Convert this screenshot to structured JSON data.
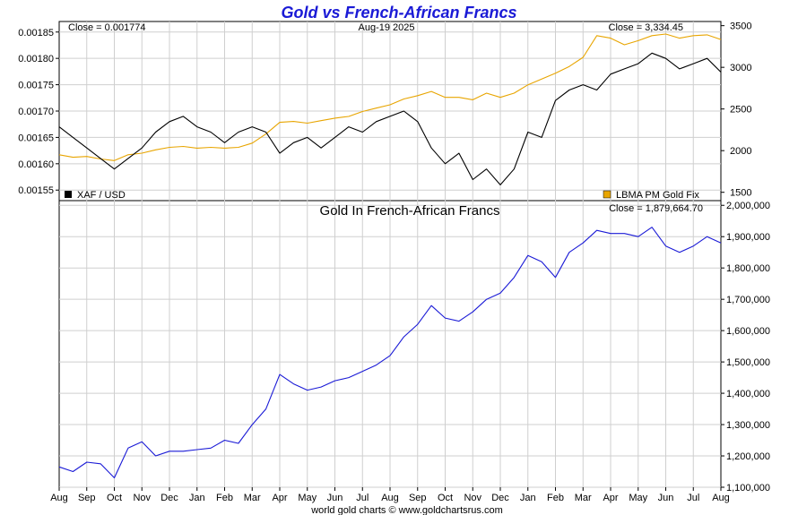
{
  "page": {
    "title": "Gold vs French-African Francs",
    "footer": "world gold charts © www.goldchartsrus.com",
    "date_label": "Aug-19  2025"
  },
  "colors": {
    "title": "#1a1ad6",
    "xaf_usd": "#000000",
    "gold_usd": "#e8a500",
    "gold_xaf": "#1a1ad6"
  },
  "top_panel": {
    "close_left": "Close = 0.001774",
    "close_right": "Close = 3,334.45",
    "legend_left": "XAF / USD",
    "legend_right": "LBMA PM Gold Fix"
  },
  "bottom_panel": {
    "title": "Gold In French-African Francs",
    "close": "Close = 1,879,664.70"
  },
  "chart_data": [
    {
      "type": "line",
      "panel": "top",
      "x_tick_labels": [
        "Aug",
        "Sep",
        "Oct",
        "Nov",
        "Dec",
        "Jan",
        "Feb",
        "Mar",
        "Apr",
        "May",
        "Jun",
        "Jul",
        "Aug",
        "Sep",
        "Oct",
        "Nov",
        "Dec",
        "Jan",
        "Feb",
        "Mar",
        "Apr",
        "May",
        "Jun",
        "Jul",
        "Aug"
      ],
      "y_left": {
        "ticks": [
          "0.00155",
          "0.00160",
          "0.00165",
          "0.00170",
          "0.00175",
          "0.00180",
          "0.00185"
        ],
        "ylim": [
          0.00153,
          0.00187
        ]
      },
      "y_right": {
        "ticks": [
          "1500",
          "2000",
          "2500",
          "3000",
          "3500"
        ],
        "ylim": [
          1400,
          3550
        ]
      },
      "series": [
        {
          "name": "XAF / USD",
          "axis": "left",
          "x": [
            0,
            0.5,
            1,
            1.5,
            2,
            2.5,
            3,
            3.5,
            4,
            4.5,
            5,
            5.5,
            6,
            6.5,
            7,
            7.5,
            8,
            8.5,
            9,
            9.5,
            10,
            10.5,
            11,
            11.5,
            12,
            12.5,
            13,
            13.5,
            14,
            14.5,
            15,
            15.5,
            16,
            16.5,
            17,
            17.5,
            18,
            18.5,
            19,
            19.5,
            20,
            20.5,
            21,
            21.5,
            22,
            22.5,
            23,
            23.5,
            24
          ],
          "values": [
            0.00167,
            0.00165,
            0.00163,
            0.00161,
            0.00159,
            0.00161,
            0.00163,
            0.00166,
            0.00168,
            0.00169,
            0.00167,
            0.00166,
            0.00164,
            0.00166,
            0.00167,
            0.00166,
            0.00162,
            0.00164,
            0.00165,
            0.00163,
            0.00165,
            0.00167,
            0.00166,
            0.00168,
            0.00169,
            0.0017,
            0.00168,
            0.00163,
            0.0016,
            0.00162,
            0.00157,
            0.00159,
            0.00156,
            0.00159,
            0.00166,
            0.00165,
            0.00172,
            0.00174,
            0.00175,
            0.00174,
            0.00177,
            0.00178,
            0.00179,
            0.00181,
            0.0018,
            0.00178,
            0.00179,
            0.0018,
            0.001774
          ]
        },
        {
          "name": "LBMA PM Gold Fix",
          "axis": "right",
          "x": [
            0,
            0.5,
            1,
            1.5,
            2,
            2.5,
            3,
            3.5,
            4,
            4.5,
            5,
            5.5,
            6,
            6.5,
            7,
            7.5,
            8,
            8.5,
            9,
            9.5,
            10,
            10.5,
            11,
            11.5,
            12,
            12.5,
            13,
            13.5,
            14,
            14.5,
            15,
            15.5,
            16,
            16.5,
            17,
            17.5,
            18,
            18.5,
            19,
            19.5,
            20,
            20.5,
            21,
            21.5,
            22,
            22.5,
            23,
            23.5,
            24
          ],
          "values": [
            1950,
            1920,
            1930,
            1900,
            1880,
            1950,
            1970,
            2010,
            2040,
            2050,
            2030,
            2040,
            2030,
            2040,
            2090,
            2200,
            2340,
            2350,
            2330,
            2360,
            2390,
            2410,
            2470,
            2510,
            2550,
            2620,
            2660,
            2710,
            2640,
            2640,
            2610,
            2690,
            2640,
            2690,
            2790,
            2860,
            2930,
            3010,
            3120,
            3380,
            3350,
            3270,
            3320,
            3380,
            3400,
            3350,
            3380,
            3390,
            3334.45
          ]
        }
      ]
    },
    {
      "type": "line",
      "panel": "bottom",
      "title": "Gold In French-African Francs",
      "x_tick_labels": [
        "Aug",
        "Sep",
        "Oct",
        "Nov",
        "Dec",
        "Jan",
        "Feb",
        "Mar",
        "Apr",
        "May",
        "Jun",
        "Jul",
        "Aug",
        "Sep",
        "Oct",
        "Nov",
        "Dec",
        "Jan",
        "Feb",
        "Mar",
        "Apr",
        "May",
        "Jun",
        "Jul",
        "Aug"
      ],
      "y_right": {
        "ticks": [
          "1,100,000",
          "1,200,000",
          "1,300,000",
          "1,400,000",
          "1,500,000",
          "1,600,000",
          "1,700,000",
          "1,800,000",
          "1,900,000",
          "2,000,000"
        ],
        "ylim": [
          1100000,
          2015000
        ]
      },
      "series": [
        {
          "name": "Gold In French-African Francs",
          "axis": "right",
          "x": [
            0,
            0.5,
            1,
            1.5,
            2,
            2.5,
            3,
            3.5,
            4,
            4.5,
            5,
            5.5,
            6,
            6.5,
            7,
            7.5,
            8,
            8.5,
            9,
            9.5,
            10,
            10.5,
            11,
            11.5,
            12,
            12.5,
            13,
            13.5,
            14,
            14.5,
            15,
            15.5,
            16,
            16.5,
            17,
            17.5,
            18,
            18.5,
            19,
            19.5,
            20,
            20.5,
            21,
            21.5,
            22,
            22.5,
            23,
            23.5,
            24
          ],
          "values": [
            1165000,
            1150000,
            1180000,
            1175000,
            1130000,
            1225000,
            1245000,
            1200000,
            1215000,
            1215000,
            1220000,
            1225000,
            1250000,
            1240000,
            1300000,
            1350000,
            1460000,
            1430000,
            1410000,
            1420000,
            1440000,
            1450000,
            1470000,
            1490000,
            1520000,
            1580000,
            1620000,
            1680000,
            1640000,
            1630000,
            1660000,
            1700000,
            1720000,
            1770000,
            1840000,
            1820000,
            1770000,
            1850000,
            1880000,
            1920000,
            1910000,
            1910000,
            1900000,
            1930000,
            1870000,
            1850000,
            1870000,
            1900000,
            1879664.7
          ]
        }
      ]
    }
  ]
}
